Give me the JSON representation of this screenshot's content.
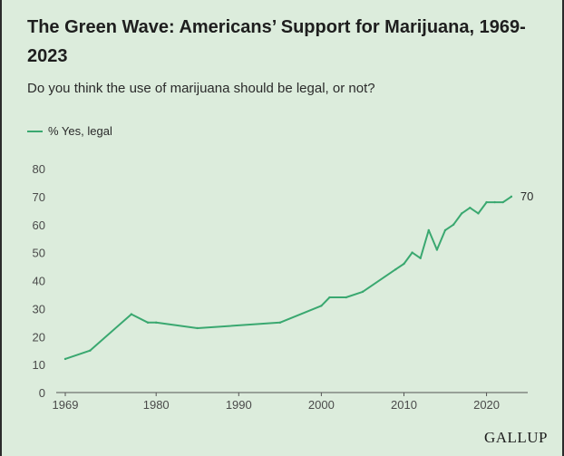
{
  "title": "The Green Wave: Americans’ Support for Marijuana, 1969-2023",
  "subtitle": "Do you think the use of marijuana should be legal, or not?",
  "legend_label": "% Yes, legal",
  "footer_logo": "GALLUP",
  "colors": {
    "series": "#3aa870",
    "background": "#dcecdc"
  },
  "chart_data": {
    "type": "line",
    "title": "The Green Wave: Americans’ Support for Marijuana, 1969-2023",
    "subtitle": "Do you think the use of marijuana should be legal, or not?",
    "xlabel": "",
    "ylabel": "",
    "xlim": [
      1969,
      2024
    ],
    "ylim": [
      0,
      80
    ],
    "xticks": [
      1969,
      1980,
      1990,
      2000,
      2010,
      2020
    ],
    "yticks": [
      0,
      10,
      20,
      30,
      40,
      50,
      60,
      70,
      80
    ],
    "grid": false,
    "legend": "top-left",
    "end_label": "70",
    "series": [
      {
        "name": "% Yes, legal",
        "x": [
          1969,
          1972,
          1977,
          1979,
          1980,
          1985,
          1995,
          2000,
          2001,
          2003,
          2005,
          2009,
          2010,
          2011,
          2012,
          2013,
          2014,
          2015,
          2016,
          2017,
          2018,
          2019,
          2020,
          2021,
          2022,
          2023
        ],
        "y": [
          12,
          15,
          28,
          25,
          25,
          23,
          25,
          31,
          34,
          34,
          36,
          44,
          46,
          50,
          48,
          58,
          51,
          58,
          60,
          64,
          66,
          64,
          68,
          68,
          68,
          70
        ]
      }
    ]
  }
}
